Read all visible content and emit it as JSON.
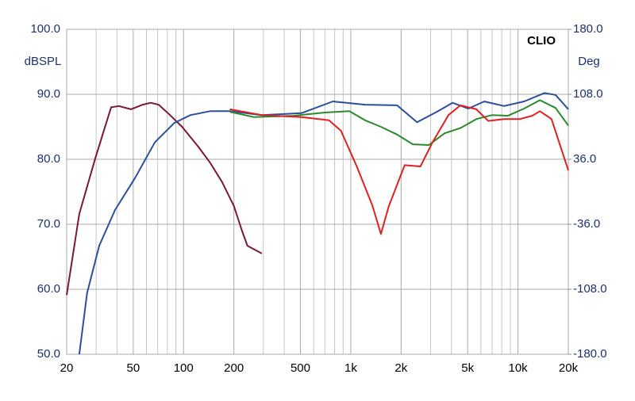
{
  "chart_data": {
    "type": "line",
    "brand": "CLIO",
    "ylabel": "dBSPL",
    "y2label": "Deg",
    "xscale": "log",
    "grid": true,
    "xlim": [
      20,
      20000
    ],
    "ylim": [
      50,
      100
    ],
    "y2lim": [
      -180,
      180
    ],
    "xticks": [
      20,
      50,
      100,
      200,
      500,
      {
        "value": 1000,
        "label": "1k"
      },
      {
        "value": 2000,
        "label": "2k"
      },
      {
        "value": 5000,
        "label": "5k"
      },
      {
        "value": 10000,
        "label": "10k"
      },
      {
        "value": 20000,
        "label": "20k"
      }
    ],
    "xminorticks": [
      30,
      40,
      60,
      70,
      80,
      90,
      300,
      400,
      600,
      700,
      800,
      900,
      3000,
      4000,
      6000,
      7000,
      8000,
      9000
    ],
    "yticks": [
      {
        "value": 50,
        "label": "50.0"
      },
      {
        "value": 60,
        "label": "60.0"
      },
      {
        "value": 70,
        "label": "70.0"
      },
      {
        "value": 80,
        "label": "80.0"
      },
      {
        "value": 90,
        "label": "90.0"
      },
      {
        "value": 100,
        "label": "100.0"
      }
    ],
    "y2ticks": [
      {
        "value": -180,
        "label": "-180.0"
      },
      {
        "value": -108,
        "label": "-108.0"
      },
      {
        "value": -36,
        "label": "-36.0"
      },
      {
        "value": 36,
        "label": "36.0"
      },
      {
        "value": 108,
        "label": "108.0"
      },
      {
        "value": 180,
        "label": "180.0"
      }
    ],
    "series": [
      {
        "color": "#7a1838",
        "x": [
          20,
          23.8,
          29.6,
          36.9,
          41,
          48.5,
          57,
          63.5,
          71,
          83,
          98,
          122,
          144,
          170,
          200,
          223,
          241,
          294
        ],
        "values": [
          59.1,
          71.6,
          80.1,
          88.0,
          88.2,
          87.7,
          88.4,
          88.7,
          88.4,
          86.8,
          85.0,
          82.0,
          79.5,
          76.5,
          72.8,
          69.1,
          66.7,
          65.5
        ]
      },
      {
        "color": "#2a4f9c",
        "x": [
          23.8,
          26.5,
          31.3,
          38.9,
          51.2,
          67.3,
          88,
          110,
          144,
          189,
          294,
          506,
          782,
          1218,
          1893,
          2490,
          3270,
          4060,
          5050,
          6290,
          8260,
          10880,
          14380,
          16770,
          20000
        ],
        "values": [
          50.0,
          59.4,
          66.7,
          72.2,
          77.1,
          82.6,
          85.6,
          86.8,
          87.4,
          87.4,
          86.8,
          87.1,
          88.9,
          88.4,
          88.3,
          85.7,
          87.3,
          88.7,
          87.8,
          88.9,
          88.2,
          88.9,
          90.2,
          89.9,
          87.7
        ]
      },
      {
        "color": "#2a8a2a",
        "x": [
          189,
          263,
          454,
          700,
          980,
          1218,
          1515,
          1893,
          2350,
          2930,
          3640,
          4530,
          5640,
          7000,
          8700,
          10880,
          13530,
          16770,
          20000
        ],
        "values": [
          87.3,
          86.5,
          86.7,
          87.2,
          87.4,
          86.0,
          85.0,
          83.8,
          82.3,
          82.2,
          84.0,
          84.8,
          86.2,
          86.8,
          86.7,
          87.8,
          89.1,
          87.9,
          85.2
        ]
      },
      {
        "color": "#e02020",
        "x": [
          189,
          294,
          506,
          740,
          873,
          1087,
          1350,
          1515,
          1690,
          2100,
          2610,
          3080,
          3840,
          4530,
          5640,
          6640,
          8260,
          10280,
          12150,
          13530,
          15860,
          20000
        ],
        "values": [
          87.7,
          86.8,
          86.5,
          86.0,
          84.4,
          78.9,
          72.8,
          68.5,
          72.8,
          79.1,
          78.9,
          82.6,
          86.8,
          88.3,
          87.7,
          85.9,
          86.2,
          86.2,
          86.7,
          87.4,
          86.2,
          78.3
        ]
      }
    ]
  }
}
